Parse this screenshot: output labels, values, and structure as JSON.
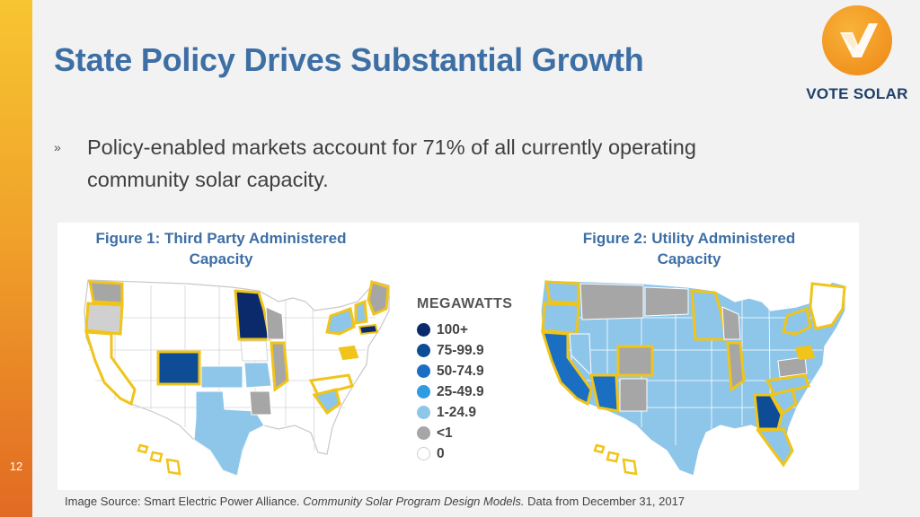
{
  "slide": {
    "title": "State Policy Drives Substantial Growth",
    "page_number": "12",
    "bullet_marker": "»",
    "bullet_text": "Policy-enabled markets account for 71% of all currently operating community solar capacity."
  },
  "logo": {
    "text": "VOTE SOLAR",
    "circle_color": "#f19320",
    "text_color": "#1e3f6b"
  },
  "figures": {
    "figure1_title": "Figure 1: Third Party Administered Capacity",
    "figure2_title": "Figure 2: Utility Administered Capacity"
  },
  "legend": {
    "title": "MEGAWATTS",
    "items": [
      {
        "label": "100+",
        "color": "#0b2a6b"
      },
      {
        "label": "75-99.9",
        "color": "#0f4c96"
      },
      {
        "label": "50-74.9",
        "color": "#1a6fc2"
      },
      {
        "label": "25-49.9",
        "color": "#2f9be0"
      },
      {
        "label": "1-24.9",
        "color": "#8ec6ea"
      },
      {
        "label": "<1",
        "color": "#a6a6a6"
      },
      {
        "label": "0",
        "color": "#ffffff"
      }
    ]
  },
  "source": {
    "prefix": "Image Source: Smart Electric Power Alliance. ",
    "italic": "Community Solar Program Design Models.",
    "suffix": " Data from December 31, 2017"
  }
}
